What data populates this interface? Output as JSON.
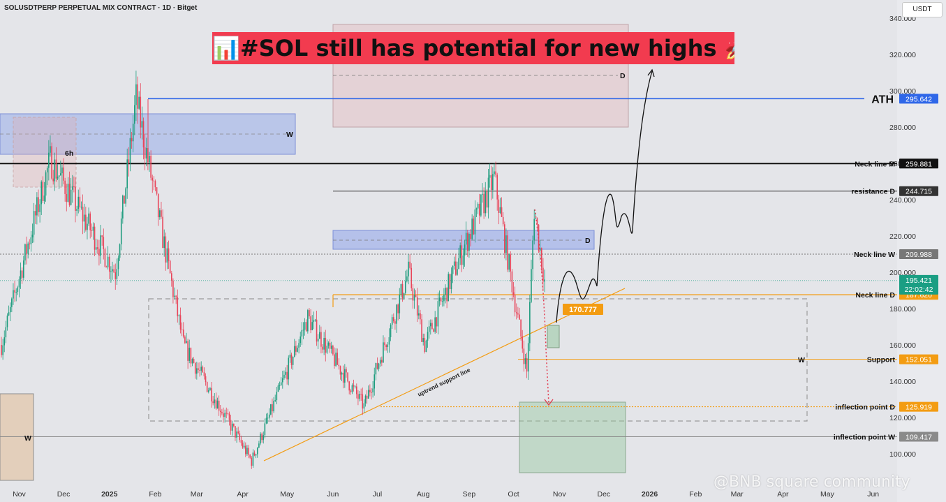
{
  "header": {
    "title": "SOLUSDTPERP PERPETUAL MIX CONTRACT · 1D · Bitget"
  },
  "currency_button": "USDT",
  "headline": "📊#SOL still has potential for new highs 🚀",
  "watermark": "@BNB square community",
  "chart_data": {
    "type": "candlestick",
    "title": "",
    "ylim": [
      90,
      345
    ],
    "y_ticks": [
      "340.000",
      "320.000",
      "300.000",
      "280.000",
      "260.000",
      "240.000",
      "220.000",
      "200.000",
      "180.000",
      "160.000",
      "140.000",
      "120.000",
      "100.000"
    ],
    "x_ticks": [
      "Nov",
      "Dec",
      "2025",
      "Feb",
      "Mar",
      "Apr",
      "May",
      "Jun",
      "Jul",
      "Aug",
      "Sep",
      "Oct",
      "Nov",
      "Dec",
      "2026",
      "Feb",
      "Mar",
      "Apr",
      "May",
      "Jun"
    ],
    "x_range": [
      "2024-10-20",
      "2026-06-10"
    ],
    "key_points": [
      {
        "date": "2024-10-20",
        "close": 160
      },
      {
        "date": "2024-11-22",
        "close": 262
      },
      {
        "date": "2025-01-05",
        "close": 200
      },
      {
        "date": "2025-01-19",
        "close": 295.6
      },
      {
        "date": "2025-02-20",
        "close": 160
      },
      {
        "date": "2025-04-07",
        "close": 96
      },
      {
        "date": "2025-05-15",
        "close": 175
      },
      {
        "date": "2025-06-22",
        "close": 126
      },
      {
        "date": "2025-07-22",
        "close": 200
      },
      {
        "date": "2025-08-02",
        "close": 160
      },
      {
        "date": "2025-08-29",
        "close": 215
      },
      {
        "date": "2025-09-18",
        "close": 252
      },
      {
        "date": "2025-10-10",
        "close": 145
      },
      {
        "date": "2025-10-15",
        "close": 235
      },
      {
        "date": "2025-10-22",
        "close": 195.4
      }
    ],
    "levels": [
      {
        "label": "ATH",
        "value": 295.642,
        "value_text": "295.642",
        "color": "#2f67e8"
      },
      {
        "label": "Neck line M",
        "value": 259.881,
        "value_text": "259.881",
        "color": "#111111"
      },
      {
        "label": "resistance D",
        "value": 244.715,
        "value_text": "244.715",
        "color": "#333333"
      },
      {
        "label": "Neck line W",
        "value": 209.988,
        "value_text": "209.988",
        "color": "#777777"
      },
      {
        "label": "Neck line D",
        "value": 187.62,
        "value_text": "187.620",
        "color": "#f39c12"
      },
      {
        "label": "Support",
        "value": 152.051,
        "value_text": "152.051",
        "color": "#f39c12"
      },
      {
        "label": "inflection point D",
        "value": 125.919,
        "value_text": "125.919",
        "color": "#f39c12"
      },
      {
        "label": "inflection point W",
        "value": 109.417,
        "value_text": "109.417",
        "color": "#8a8a8a"
      }
    ],
    "current_price": {
      "value": 195.421,
      "value_text": "195.421",
      "countdown": "22:02:42",
      "color": "#1a9e83"
    },
    "annotations": {
      "trendline_price": "170.777",
      "trendline_label": "uptrend support line",
      "six_hour": "6h",
      "weekly": "W",
      "daily": "D"
    }
  }
}
